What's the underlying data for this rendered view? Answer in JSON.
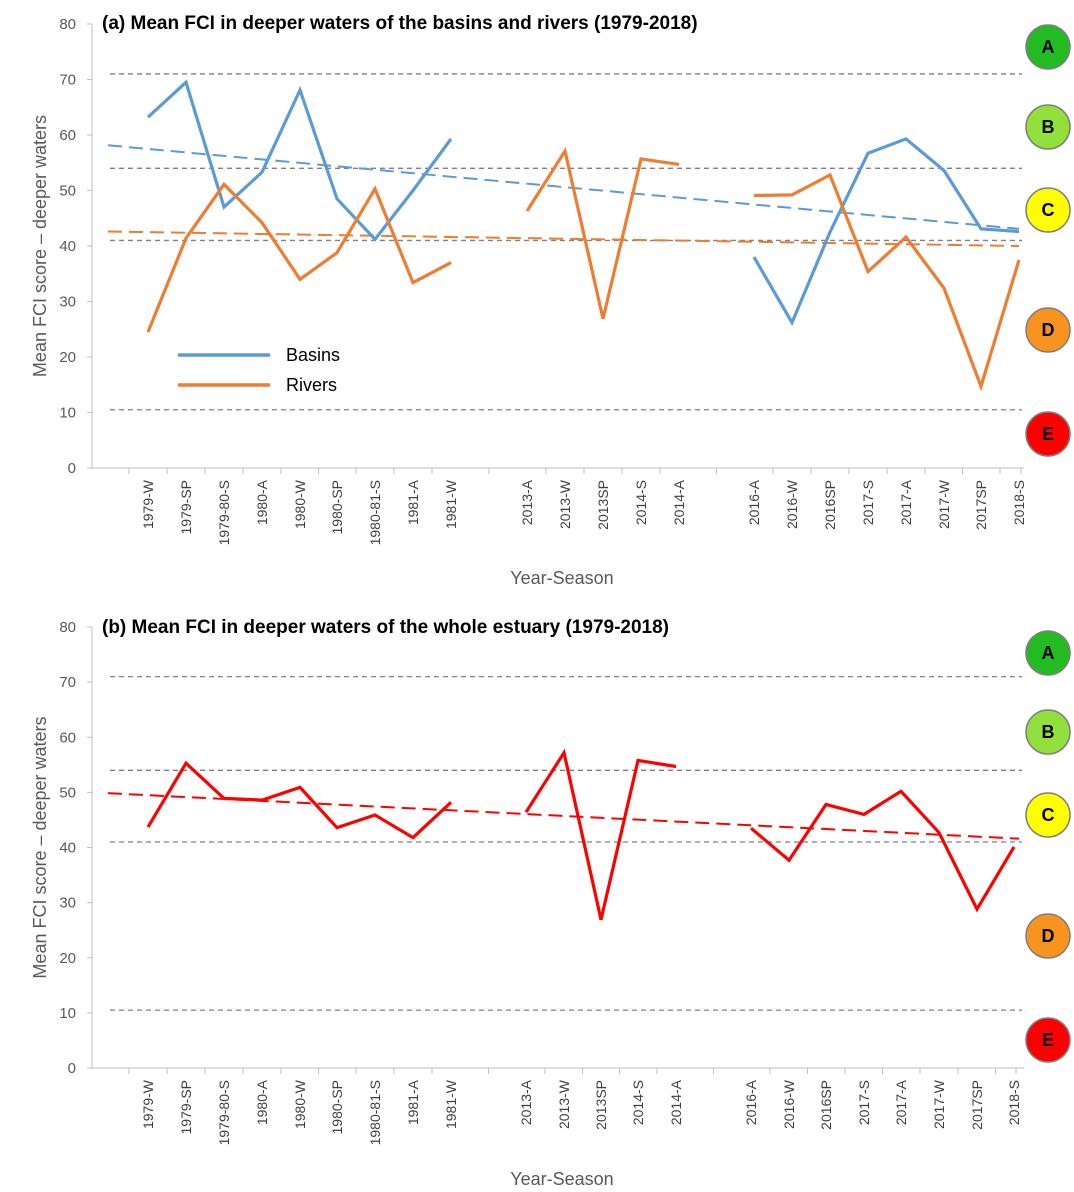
{
  "chart_data": [
    {
      "type": "line",
      "title": "(a) Mean FCI in deeper waters of the basins and rivers (1979-2018)",
      "xlabel": "Year-Season",
      "ylabel": "Mean FCI score – deeper waters",
      "ylim": [
        0,
        80
      ],
      "yticks": [
        0,
        10,
        20,
        30,
        40,
        50,
        60,
        70,
        80
      ],
      "categories": [
        "1979-W",
        "1979-SP",
        "1979-80-S",
        "1980-A",
        "1980-W",
        "1980-SP",
        "1980-81-S",
        "1981-A",
        "1981-W",
        "2013-A",
        "2013-W",
        "2013SP",
        "2014-S",
        "2014-A",
        "2016-A",
        "2016-W",
        "2016SP",
        "2017-S",
        "2017-A",
        "2017-W",
        "2017SP",
        "2018-S"
      ],
      "series": [
        {
          "name": "Basins",
          "color": "#5B9BD5",
          "values": [
            63.2,
            69.5,
            47,
            53.3,
            68.1,
            48.5,
            41.2,
            50,
            59.3,
            null,
            null,
            null,
            null,
            null,
            38,
            26.2,
            42.5,
            56.7,
            59.3,
            53.6,
            43.1,
            42.6
          ],
          "trend": [
            57.5,
            43.1
          ]
        },
        {
          "name": "Rivers",
          "color": "#ED7D31",
          "values": [
            24.5,
            41.4,
            51.1,
            44.2,
            34,
            38.8,
            50.3,
            33.4,
            37,
            46.3,
            57.1,
            26.9,
            55.7,
            54.7,
            49.1,
            49.2,
            52.8,
            35.4,
            41.6,
            32.4,
            14.7,
            37.5
          ],
          "trend": [
            42.5,
            40.0
          ]
        }
      ],
      "grade_thresholds": [
        71,
        54,
        41,
        10.5
      ],
      "legend_position": "lower-left"
    },
    {
      "type": "line",
      "title": "(b) Mean FCI in deeper waters of the whole estuary (1979-2018)",
      "xlabel": "Year-Season",
      "ylabel": "Mean FCI score – deeper waters",
      "ylim": [
        0,
        80
      ],
      "yticks": [
        0,
        10,
        20,
        30,
        40,
        50,
        60,
        70,
        80
      ],
      "categories": [
        "1979-W",
        "1979-SP",
        "1979-80-S",
        "1980-A",
        "1980-W",
        "1980-SP",
        "1980-81-S",
        "1981-A",
        "1981-W",
        "2013-A",
        "2013-W",
        "2013SP",
        "2014-S",
        "2014-A",
        "2016-A",
        "2016-W",
        "2016SP",
        "2017-S",
        "2017-A",
        "2017-W",
        "2017SP",
        "2018-S"
      ],
      "series": [
        {
          "color": "#FF0000",
          "values": [
            43.7,
            55.3,
            48.9,
            48.6,
            50.9,
            43.6,
            45.9,
            41.8,
            48.2,
            46.4,
            57.2,
            26.9,
            55.8,
            54.7,
            43.5,
            37.7,
            47.8,
            46,
            50.2,
            42.7,
            28.8,
            40.1
          ],
          "trend": [
            49.5,
            41.6
          ]
        }
      ],
      "grade_thresholds": [
        71,
        54,
        41,
        10.5
      ]
    }
  ],
  "grades": [
    {
      "label": "A",
      "color": "#22BB22"
    },
    {
      "label": "B",
      "color": "#92E03C"
    },
    {
      "label": "C",
      "color": "#FFFF00"
    },
    {
      "label": "D",
      "color": "#F7931E"
    },
    {
      "label": "E",
      "color": "#FF0000"
    }
  ],
  "colors": {
    "axis": "#BFBFBF",
    "threshold": "#808080"
  }
}
